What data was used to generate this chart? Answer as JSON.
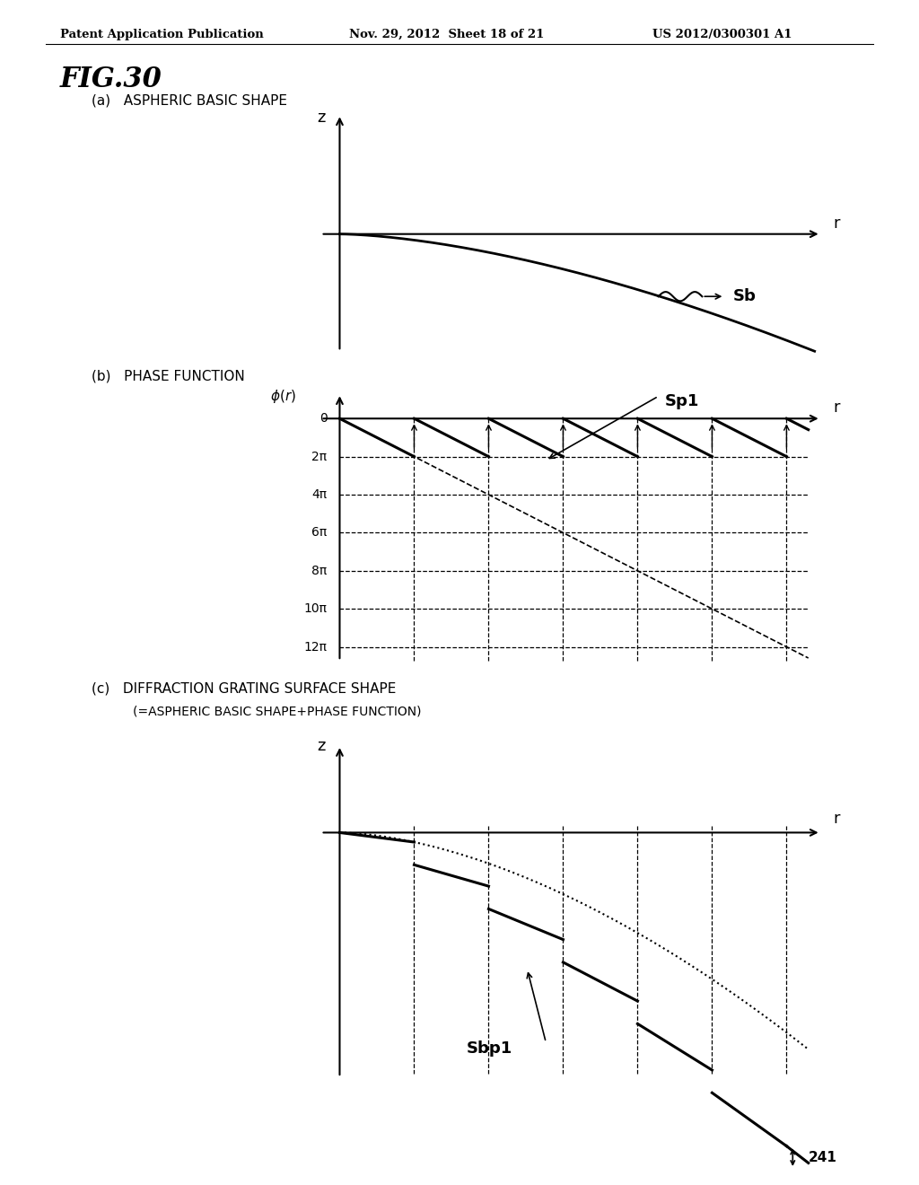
{
  "fig_label": "FIG.30",
  "header_left": "Patent Application Publication",
  "header_mid": "Nov. 29, 2012  Sheet 18 of 21",
  "header_right": "US 2012/0300301 A1",
  "panel_a_title": "(a)   ASPHERIC BASIC SHAPE",
  "panel_b_title": "(b)   PHASE FUNCTION",
  "panel_c_title": "(c)   DIFFRACTION GRATING SURFACE SHAPE",
  "panel_c_subtitle": "(=ASPHERIC BASIC SHAPE+PHASE FUNCTION)",
  "label_Sb": "Sb",
  "label_Sp1": "Sp1",
  "label_Sbp1": "Sbp1",
  "label_241": "241",
  "yticks_b": [
    "0",
    "2π",
    "4π",
    "6π",
    "8π",
    "10π",
    "12π"
  ],
  "bg_color": "#ffffff",
  "line_color": "#000000"
}
